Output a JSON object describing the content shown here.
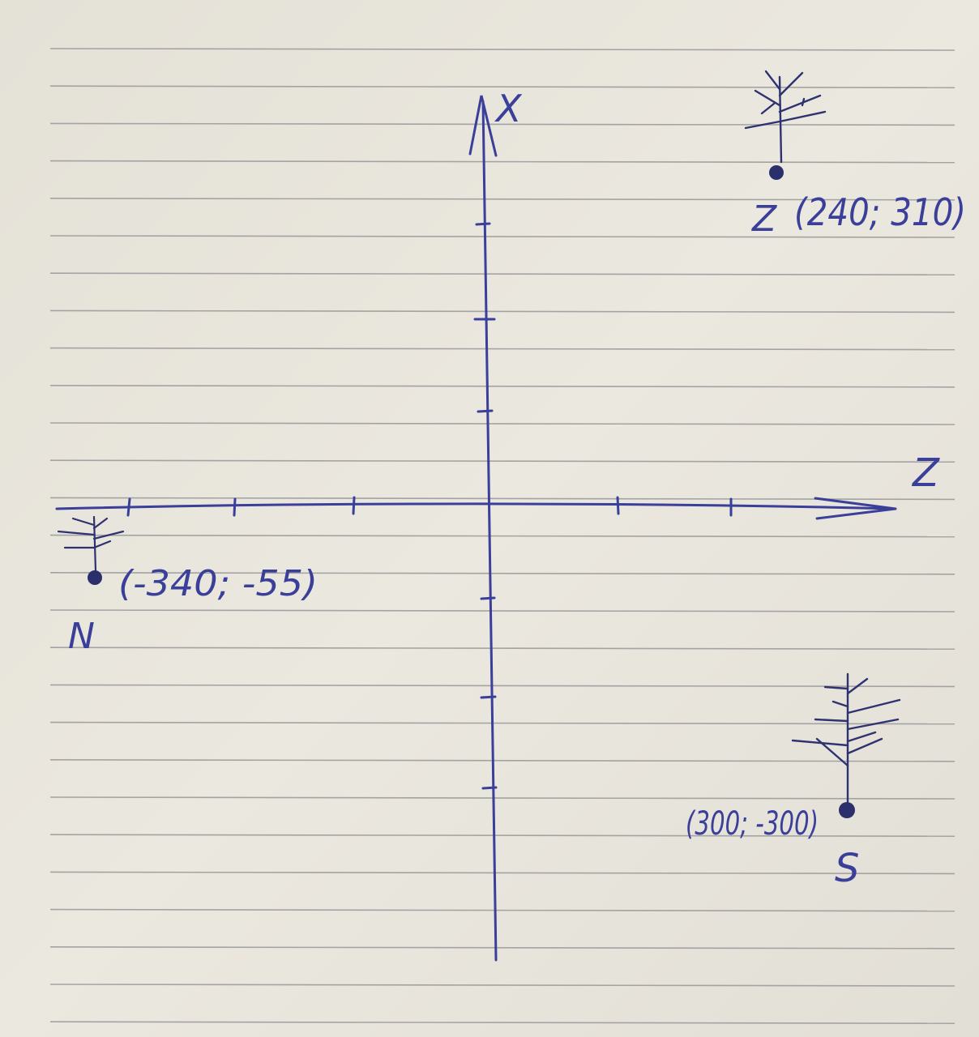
{
  "axes": {
    "vertical_label": "X",
    "horizontal_label": "Z"
  },
  "points": [
    {
      "id": "Z",
      "label": "Z",
      "coords_text": "(240; 310)",
      "z": 240,
      "x": 310
    },
    {
      "id": "N",
      "label": "N",
      "coords_text": "(-340; -55)",
      "z": -340,
      "x": -55
    },
    {
      "id": "S",
      "label": "S",
      "coords_text": "(300; -300)",
      "z": 300,
      "x": -300
    }
  ],
  "colors": {
    "ink": "#3a3f9a",
    "ruled_line": "#9c9c9c",
    "paper": "#e6e3da"
  }
}
